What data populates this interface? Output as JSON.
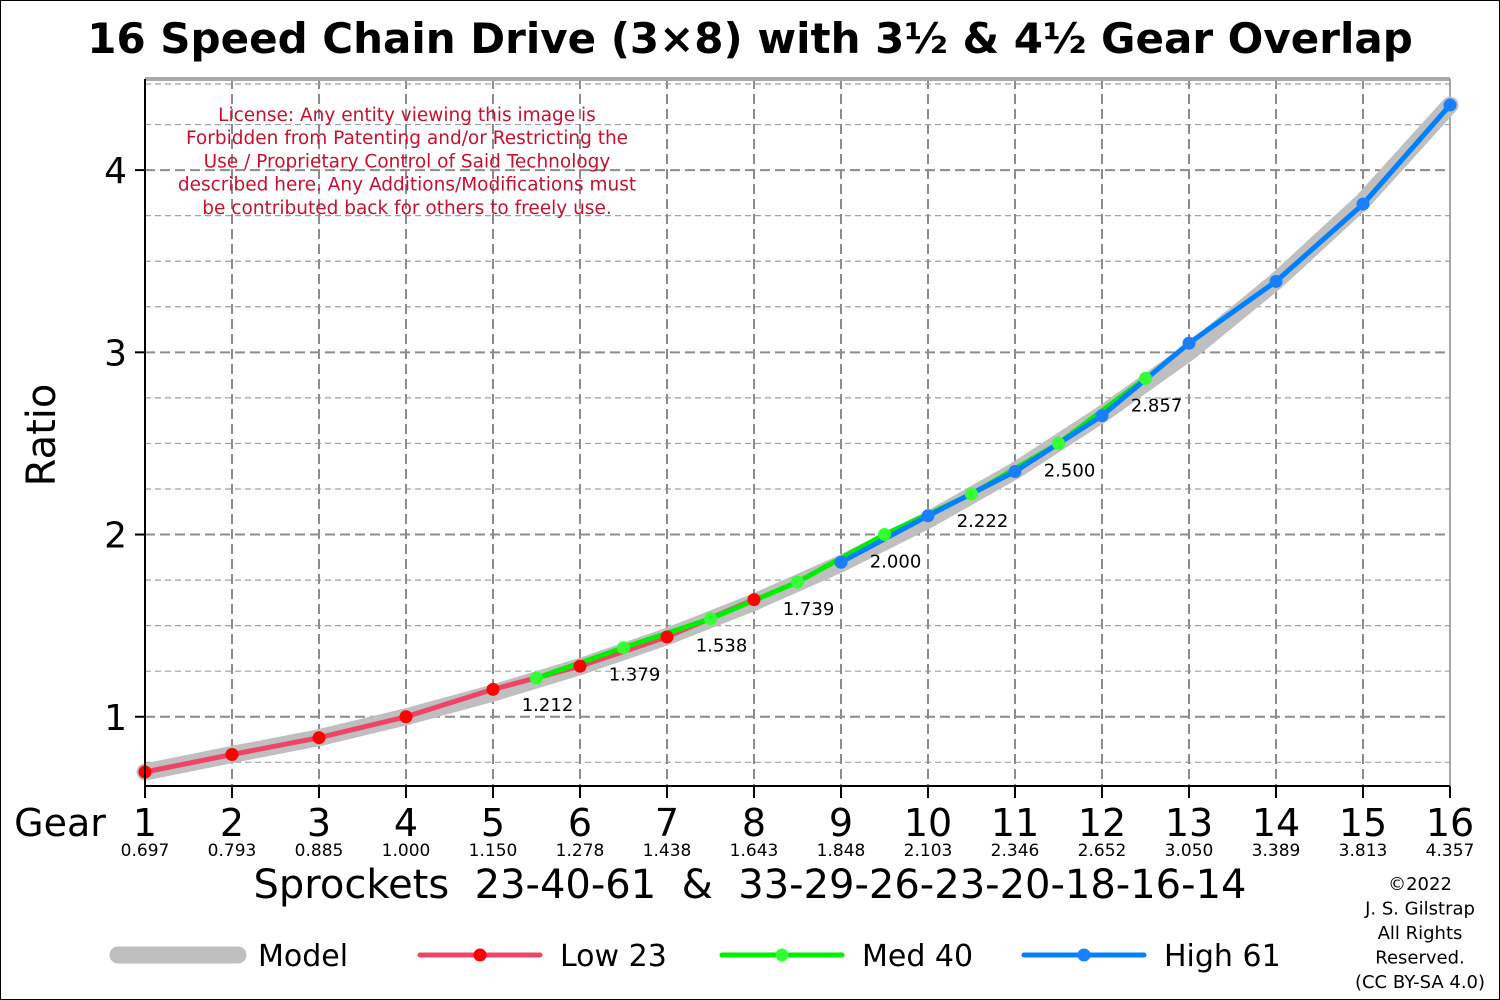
{
  "chart_data": {
    "type": "line",
    "title": "16 Speed Chain Drive (3×8) with 3½ & 4½ Gear Overlap",
    "ylabel": "Ratio",
    "xlabel": "Sprockets  23-40-61  &  33-29-26-23-20-18-16-14",
    "gear_axis_label": "Gear",
    "xlim": [
      1,
      16
    ],
    "ylim": [
      0.62,
      4.5
    ],
    "y_ticks": [
      1,
      2,
      3,
      4
    ],
    "y_tick_labels": [
      "1",
      "2",
      "3",
      "4"
    ],
    "grid": true,
    "gears": [
      {
        "gear": "1",
        "ratio": "0.697"
      },
      {
        "gear": "2",
        "ratio": "0.793"
      },
      {
        "gear": "3",
        "ratio": "0.885"
      },
      {
        "gear": "4",
        "ratio": "1.000"
      },
      {
        "gear": "5",
        "ratio": "1.150"
      },
      {
        "gear": "6",
        "ratio": "1.278"
      },
      {
        "gear": "7",
        "ratio": "1.438"
      },
      {
        "gear": "8",
        "ratio": "1.643"
      },
      {
        "gear": "9",
        "ratio": "1.848"
      },
      {
        "gear": "10",
        "ratio": "2.103"
      },
      {
        "gear": "11",
        "ratio": "2.346"
      },
      {
        "gear": "12",
        "ratio": "2.652"
      },
      {
        "gear": "13",
        "ratio": "3.050"
      },
      {
        "gear": "14",
        "ratio": "3.389"
      },
      {
        "gear": "15",
        "ratio": "3.813"
      },
      {
        "gear": "16",
        "ratio": "4.357"
      }
    ],
    "series": [
      {
        "name": "Model",
        "color": "#bfbfbf",
        "style": "thick-band",
        "x": [
          1,
          2,
          3,
          4,
          5,
          6,
          7,
          8,
          9,
          10,
          11,
          12,
          13,
          14,
          15,
          16
        ],
        "y": [
          0.697,
          0.793,
          0.885,
          1.0,
          1.13,
          1.275,
          1.44,
          1.628,
          1.84,
          2.08,
          2.35,
          2.66,
          3.0,
          3.39,
          3.83,
          4.357
        ]
      },
      {
        "name": "Low 23",
        "color": "#ee4466",
        "marker_color": "#ff0000",
        "x": [
          1,
          2,
          3,
          4,
          5,
          6,
          7,
          8
        ],
        "y": [
          0.697,
          0.793,
          0.885,
          1.0,
          1.15,
          1.278,
          1.438,
          1.643
        ]
      },
      {
        "name": "Med 40",
        "color": "#00ee00",
        "marker_color": "#33ff33",
        "x": [
          5.5,
          6.5,
          7.5,
          8.5,
          9.5,
          10.5,
          11.5,
          12.5
        ],
        "y": [
          1.212,
          1.379,
          1.538,
          1.739,
          2.0,
          2.222,
          2.5,
          2.857
        ]
      },
      {
        "name": "High 61",
        "color": "#0080ff",
        "marker_color": "#1a7fff",
        "x": [
          9,
          10,
          11,
          12,
          13,
          14,
          15,
          16
        ],
        "y": [
          1.848,
          2.103,
          2.346,
          2.652,
          3.05,
          3.389,
          3.813,
          4.357
        ]
      }
    ],
    "point_labels": [
      {
        "x": 5.5,
        "y": 1.212,
        "text": "1.212"
      },
      {
        "x": 6.5,
        "y": 1.379,
        "text": "1.379"
      },
      {
        "x": 7.5,
        "y": 1.538,
        "text": "1.538"
      },
      {
        "x": 8.5,
        "y": 1.739,
        "text": "1.739"
      },
      {
        "x": 9.5,
        "y": 2.0,
        "text": "2.000"
      },
      {
        "x": 10.5,
        "y": 2.222,
        "text": "2.222"
      },
      {
        "x": 11.5,
        "y": 2.5,
        "text": "2.500"
      },
      {
        "x": 12.5,
        "y": 2.857,
        "text": "2.857"
      }
    ],
    "legend": {
      "placement": "bottom",
      "entries": [
        "Model",
        "Low 23",
        "Med 40",
        "High 61"
      ]
    },
    "license_lines": [
      "License: Any entity viewing this image is",
      "Forbidden from Patenting and/or Restricting the",
      "Use / Proprietary Control of Said Technology",
      "described here.  Any Additions/Modifications must",
      "be contributed back for others to freely use."
    ],
    "copyright_lines": [
      "©2022",
      "J. S. Gilstrap",
      "All Rights",
      "Reserved.",
      "(CC BY-SA 4.0)"
    ]
  }
}
